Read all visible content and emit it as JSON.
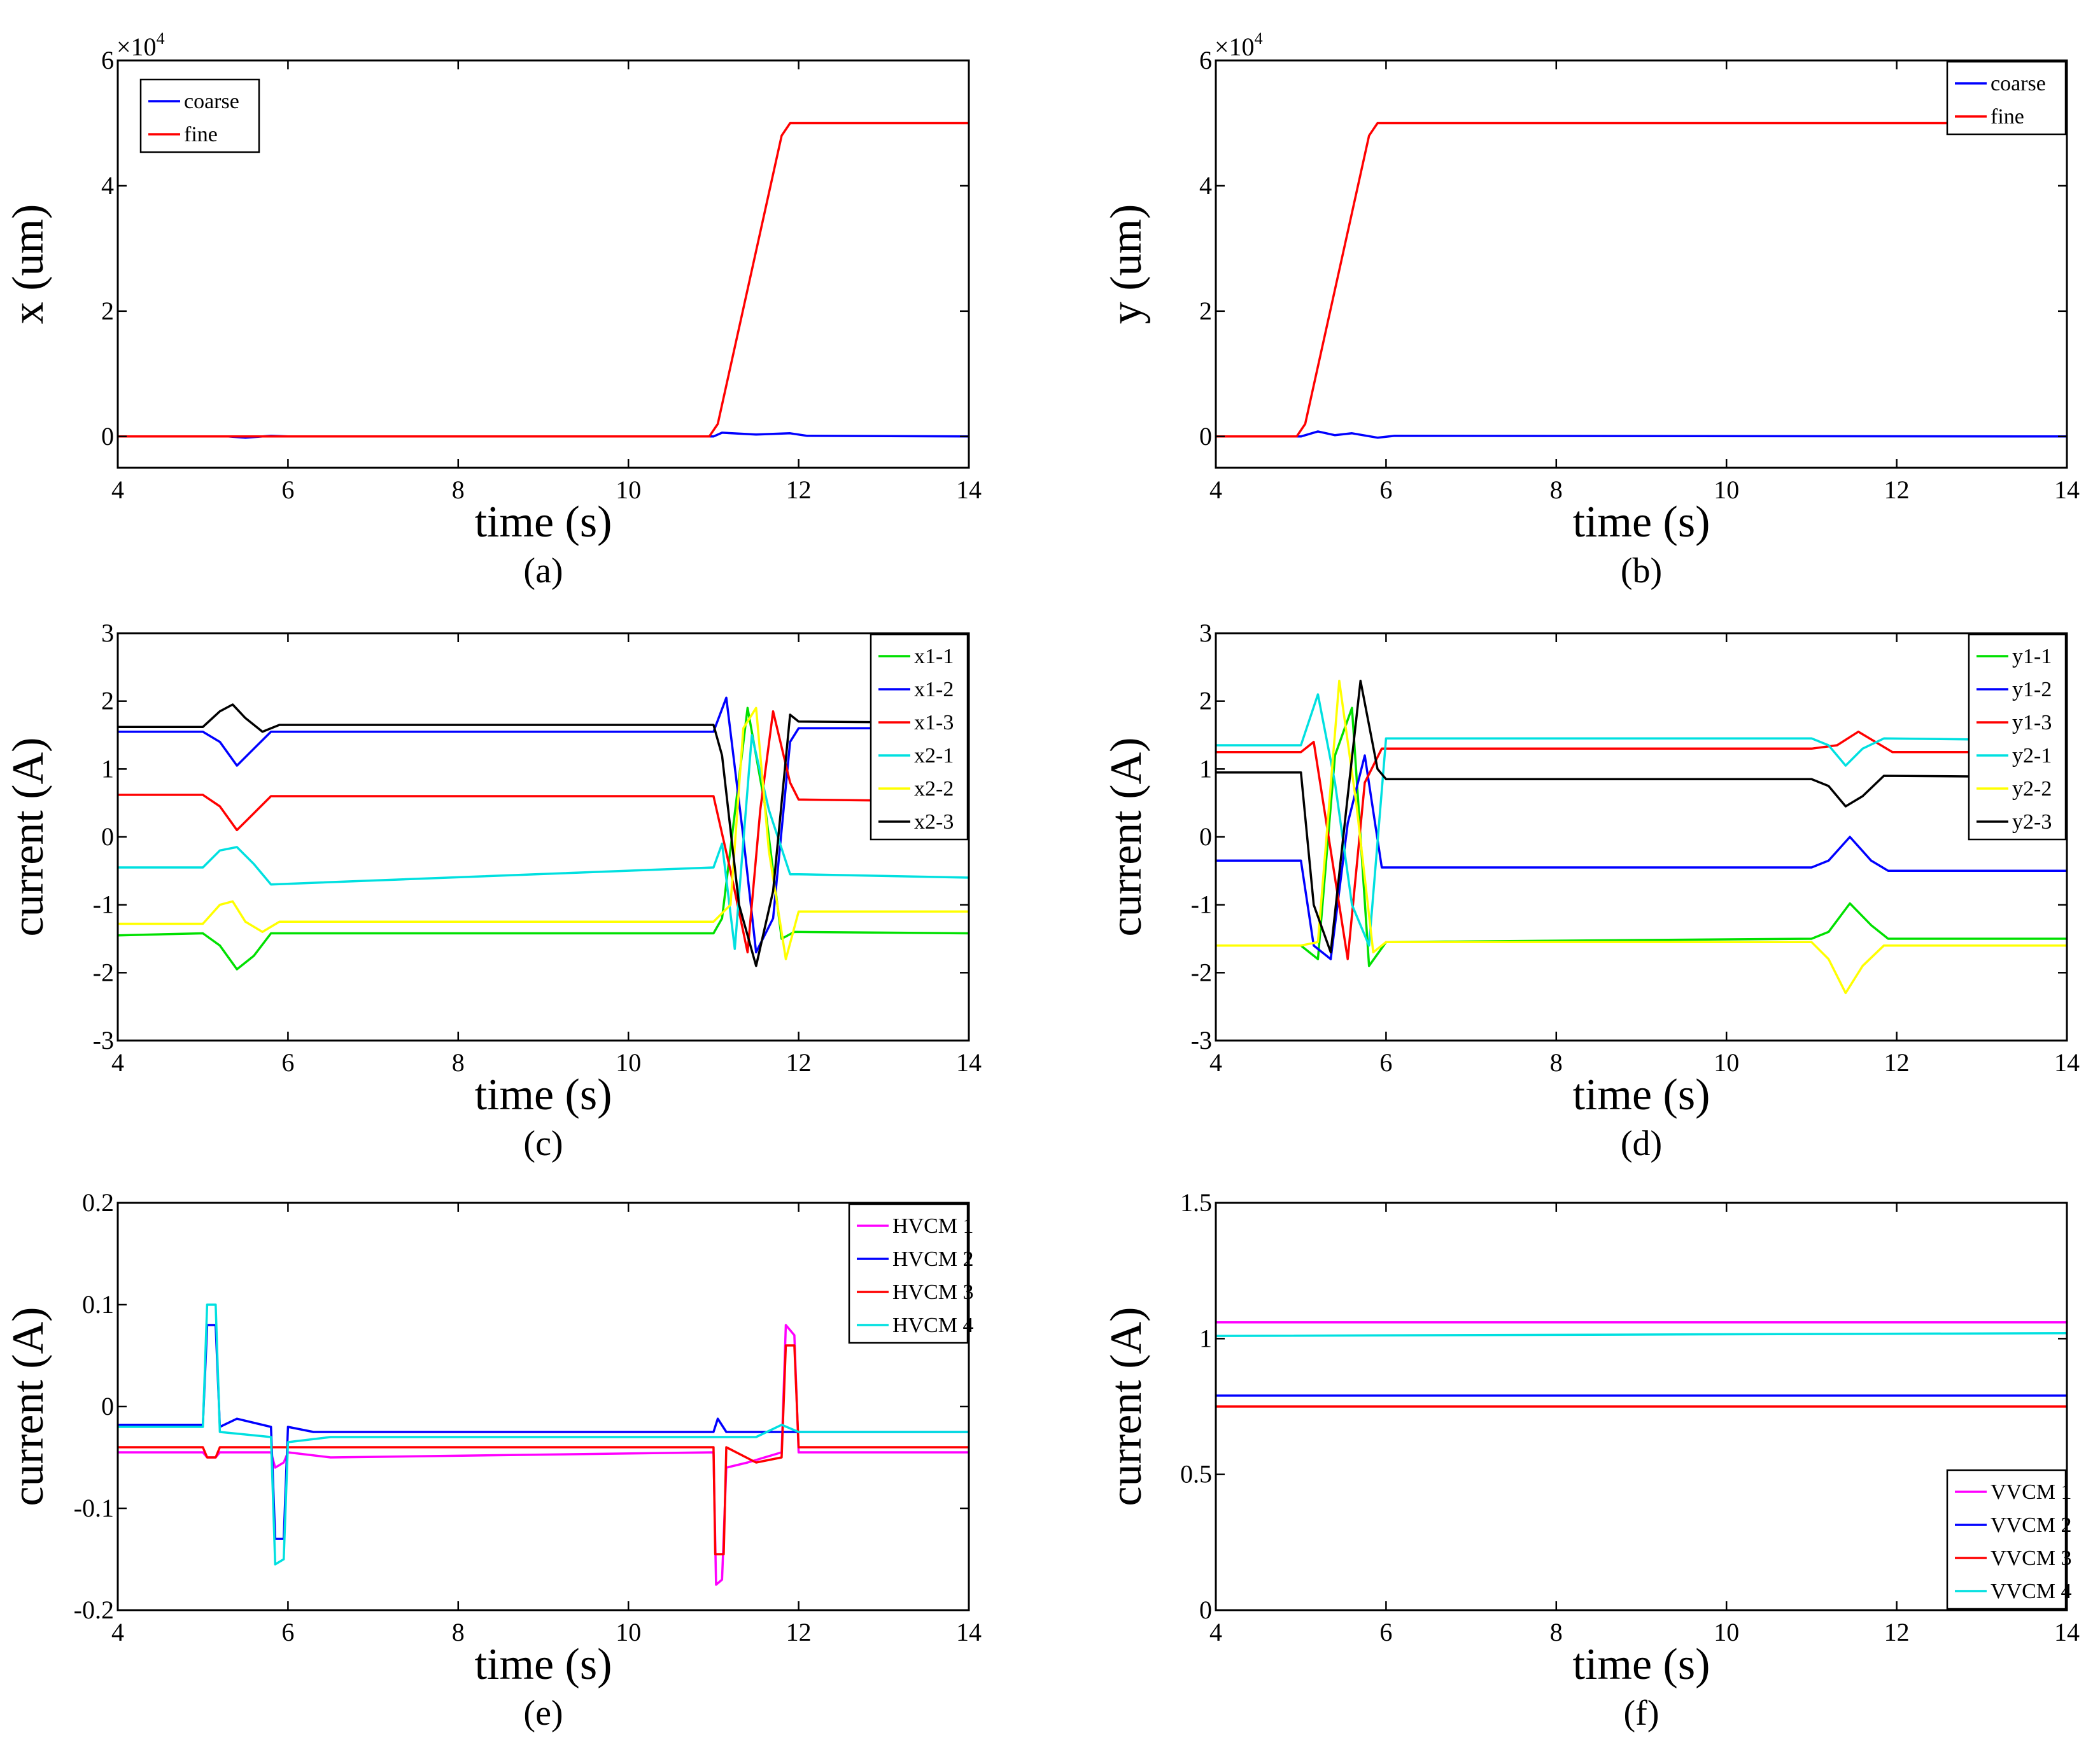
{
  "chart_data": [
    {
      "id": "a",
      "type": "line",
      "panel_label": "(a)",
      "xlabel": "time (s)",
      "ylabel": "x (um)",
      "xlim": [
        4,
        14
      ],
      "ylim": [
        -0.5,
        6
      ],
      "xticks": [
        4,
        6,
        8,
        10,
        12,
        14
      ],
      "yticks": [
        0,
        2,
        4,
        6
      ],
      "y_exponent": {
        "base": "×10",
        "power": "4"
      },
      "legend_position": "top-left",
      "series": [
        {
          "name": "coarse",
          "color": "#0000ff",
          "x": [
            4,
            5.3,
            5.5,
            5.8,
            6,
            11,
            11.1,
            11.5,
            11.9,
            12.1,
            14
          ],
          "y": [
            0,
            0,
            -0.02,
            0.01,
            0,
            0,
            0.06,
            0.03,
            0.05,
            0.01,
            0
          ]
        },
        {
          "name": "fine",
          "color": "#ff0000",
          "x": [
            4,
            10.95,
            11.05,
            11.8,
            11.9,
            14
          ],
          "y": [
            0,
            0,
            0.2,
            4.8,
            5,
            5
          ]
        }
      ]
    },
    {
      "id": "b",
      "type": "line",
      "panel_label": "(b)",
      "xlabel": "time (s)",
      "ylabel": "y (um)",
      "xlim": [
        4,
        14
      ],
      "ylim": [
        -0.5,
        6
      ],
      "xticks": [
        4,
        6,
        8,
        10,
        12,
        14
      ],
      "yticks": [
        0,
        2,
        4,
        6
      ],
      "y_exponent": {
        "base": "×10",
        "power": "4"
      },
      "legend_position": "top-right",
      "series": [
        {
          "name": "coarse",
          "color": "#0000ff",
          "x": [
            4,
            5,
            5.2,
            5.4,
            5.6,
            5.9,
            6.1,
            14
          ],
          "y": [
            0,
            0,
            0.08,
            0.02,
            0.05,
            -0.02,
            0.01,
            0
          ]
        },
        {
          "name": "fine",
          "color": "#ff0000",
          "x": [
            4,
            4.95,
            5.05,
            5.8,
            5.9,
            14
          ],
          "y": [
            0,
            0,
            0.2,
            4.8,
            5,
            5
          ]
        }
      ]
    },
    {
      "id": "c",
      "type": "line",
      "panel_label": "(c)",
      "xlabel": "time (s)",
      "ylabel": "current (A)",
      "xlim": [
        4,
        14
      ],
      "ylim": [
        -3,
        3
      ],
      "xticks": [
        4,
        6,
        8,
        10,
        12,
        14
      ],
      "yticks": [
        -3,
        -2,
        -1,
        0,
        1,
        2,
        3
      ],
      "legend_position": "top-right",
      "series": [
        {
          "name": "x1-1",
          "color": "#00e000",
          "x": [
            4,
            5,
            5.2,
            5.4,
            5.6,
            5.8,
            11,
            11.1,
            11.4,
            11.6,
            11.8,
            11.95,
            14
          ],
          "y": [
            -1.45,
            -1.42,
            -1.6,
            -1.95,
            -1.75,
            -1.42,
            -1.42,
            -1.2,
            1.9,
            0.5,
            -1.5,
            -1.4,
            -1.42
          ]
        },
        {
          "name": "x1-2",
          "color": "#0000ff",
          "x": [
            4,
            5,
            5.2,
            5.4,
            5.6,
            5.8,
            11,
            11.15,
            11.35,
            11.5,
            11.7,
            11.9,
            12,
            14
          ],
          "y": [
            1.55,
            1.55,
            1.4,
            1.05,
            1.3,
            1.55,
            1.55,
            2.05,
            0.0,
            -1.7,
            -1.2,
            1.4,
            1.6,
            1.6
          ]
        },
        {
          "name": "x1-3",
          "color": "#ff0000",
          "x": [
            4,
            5,
            5.2,
            5.4,
            5.6,
            5.8,
            11,
            11.2,
            11.4,
            11.55,
            11.7,
            11.9,
            12,
            14
          ],
          "y": [
            0.62,
            0.62,
            0.45,
            0.1,
            0.35,
            0.6,
            0.6,
            -0.5,
            -1.7,
            0.4,
            1.85,
            0.8,
            0.55,
            0.52
          ]
        },
        {
          "name": "x2-1",
          "color": "#00e0e0",
          "x": [
            4,
            5,
            5.2,
            5.4,
            5.6,
            5.8,
            11,
            11.1,
            11.25,
            11.45,
            11.65,
            11.9,
            12,
            14
          ],
          "y": [
            -0.45,
            -0.45,
            -0.2,
            -0.15,
            -0.4,
            -0.7,
            -0.45,
            -0.1,
            -1.65,
            1.5,
            0.4,
            -0.55,
            -0.55,
            -0.6
          ]
        },
        {
          "name": "x2-2",
          "color": "#ffff00",
          "x": [
            4,
            5,
            5.2,
            5.35,
            5.5,
            5.7,
            5.9,
            11,
            11.2,
            11.35,
            11.5,
            11.65,
            11.85,
            12,
            14
          ],
          "y": [
            -1.28,
            -1.28,
            -1.0,
            -0.95,
            -1.25,
            -1.4,
            -1.25,
            -1.25,
            -1.0,
            1.6,
            1.9,
            -0.2,
            -1.8,
            -1.1,
            -1.1
          ]
        },
        {
          "name": "x2-3",
          "color": "#000000",
          "x": [
            4,
            5,
            5.2,
            5.35,
            5.5,
            5.7,
            5.9,
            11,
            11.1,
            11.3,
            11.5,
            11.7,
            11.9,
            12,
            14
          ],
          "y": [
            1.62,
            1.62,
            1.85,
            1.95,
            1.75,
            1.55,
            1.65,
            1.65,
            1.2,
            -1.0,
            -1.9,
            -0.8,
            1.8,
            1.7,
            1.68
          ]
        }
      ]
    },
    {
      "id": "d",
      "type": "line",
      "panel_label": "(d)",
      "xlabel": "time (s)",
      "ylabel": "current (A)",
      "xlim": [
        4,
        14
      ],
      "ylim": [
        -3,
        3
      ],
      "xticks": [
        4,
        6,
        8,
        10,
        12,
        14
      ],
      "yticks": [
        -3,
        -2,
        -1,
        0,
        1,
        2,
        3
      ],
      "legend_position": "top-right",
      "series": [
        {
          "name": "y1-1",
          "color": "#00e000",
          "x": [
            4,
            5,
            5.2,
            5.4,
            5.6,
            5.8,
            6,
            11,
            11.2,
            11.45,
            11.7,
            11.9,
            14
          ],
          "y": [
            -1.6,
            -1.6,
            -1.8,
            1.2,
            1.9,
            -1.9,
            -1.55,
            -1.5,
            -1.4,
            -0.98,
            -1.3,
            -1.5,
            -1.5
          ]
        },
        {
          "name": "y1-2",
          "color": "#0000ff",
          "x": [
            4,
            5,
            5.15,
            5.35,
            5.55,
            5.75,
            5.95,
            11,
            11.2,
            11.45,
            11.7,
            11.9,
            14
          ],
          "y": [
            -0.35,
            -0.35,
            -1.6,
            -1.8,
            0.2,
            1.2,
            -0.45,
            -0.45,
            -0.35,
            0.0,
            -0.35,
            -0.5,
            -0.5
          ]
        },
        {
          "name": "y1-3",
          "color": "#ff0000",
          "x": [
            4,
            5,
            5.15,
            5.35,
            5.55,
            5.75,
            5.95,
            11,
            11.3,
            11.55,
            11.75,
            11.95,
            14
          ],
          "y": [
            1.25,
            1.25,
            1.4,
            -0.2,
            -1.8,
            0.8,
            1.3,
            1.3,
            1.35,
            1.55,
            1.4,
            1.25,
            1.25
          ]
        },
        {
          "name": "y2-1",
          "color": "#00e0e0",
          "x": [
            4,
            5,
            5.2,
            5.4,
            5.6,
            5.8,
            6,
            11,
            11.2,
            11.4,
            11.6,
            11.85,
            14
          ],
          "y": [
            1.35,
            1.35,
            2.1,
            0.8,
            -1.0,
            -1.6,
            1.45,
            1.45,
            1.35,
            1.05,
            1.3,
            1.45,
            1.42
          ]
        },
        {
          "name": "y2-2",
          "color": "#ffff00",
          "x": [
            4,
            5,
            5.2,
            5.45,
            5.65,
            5.85,
            6,
            11,
            11.2,
            11.4,
            11.6,
            11.85,
            14
          ],
          "y": [
            -1.6,
            -1.6,
            -1.55,
            2.3,
            0.5,
            -1.7,
            -1.55,
            -1.55,
            -1.8,
            -2.3,
            -1.9,
            -1.6,
            -1.6
          ]
        },
        {
          "name": "y2-3",
          "color": "#000000",
          "x": [
            4,
            5,
            5.15,
            5.35,
            5.55,
            5.7,
            5.9,
            6,
            11,
            11.2,
            11.4,
            11.6,
            11.85,
            14
          ],
          "y": [
            0.95,
            0.95,
            -1.0,
            -1.7,
            0.6,
            2.3,
            1.0,
            0.85,
            0.85,
            0.75,
            0.45,
            0.6,
            0.9,
            0.88
          ]
        }
      ]
    },
    {
      "id": "e",
      "type": "line",
      "panel_label": "(e)",
      "xlabel": "time (s)",
      "ylabel": "current (A)",
      "xlim": [
        4,
        14
      ],
      "ylim": [
        -0.2,
        0.2
      ],
      "xticks": [
        4,
        6,
        8,
        10,
        12,
        14
      ],
      "yticks": [
        -0.2,
        -0.1,
        0,
        0.1,
        0.2
      ],
      "ytick_labels": [
        "-0.2",
        "-0.1",
        "0",
        "0.1",
        "0.2"
      ],
      "legend_position": "top-right",
      "series": [
        {
          "name": "HVCM 1",
          "color": "#ff00ff",
          "x": [
            4,
            5,
            5.05,
            5.15,
            5.2,
            5.8,
            5.85,
            5.95,
            6,
            6.5,
            11,
            11.03,
            11.1,
            11.15,
            11.4,
            11.8,
            11.85,
            11.95,
            12,
            14
          ],
          "y": [
            -0.045,
            -0.045,
            -0.05,
            -0.05,
            -0.045,
            -0.045,
            -0.06,
            -0.055,
            -0.045,
            -0.05,
            -0.045,
            -0.175,
            -0.17,
            -0.06,
            -0.055,
            -0.045,
            0.08,
            0.07,
            -0.045,
            -0.045
          ]
        },
        {
          "name": "HVCM 2",
          "color": "#0000ff",
          "x": [
            4,
            5,
            5.05,
            5.15,
            5.2,
            5.4,
            5.8,
            5.85,
            5.95,
            6,
            6.3,
            11,
            11.05,
            11.15,
            11.5,
            14
          ],
          "y": [
            -0.018,
            -0.018,
            0.08,
            0.08,
            -0.02,
            -0.012,
            -0.02,
            -0.13,
            -0.13,
            -0.02,
            -0.025,
            -0.025,
            -0.012,
            -0.025,
            -0.025,
            -0.025
          ]
        },
        {
          "name": "HVCM 3",
          "color": "#ff0000",
          "x": [
            4,
            5,
            5.05,
            5.15,
            5.2,
            6,
            11,
            11.02,
            11.12,
            11.15,
            11.5,
            11.8,
            11.85,
            11.95,
            12,
            14
          ],
          "y": [
            -0.04,
            -0.04,
            -0.05,
            -0.05,
            -0.04,
            -0.04,
            -0.04,
            -0.145,
            -0.145,
            -0.04,
            -0.055,
            -0.05,
            0.06,
            0.06,
            -0.04,
            -0.04
          ]
        },
        {
          "name": "HVCM 4",
          "color": "#00e0e0",
          "x": [
            4,
            5,
            5.05,
            5.15,
            5.2,
            5.8,
            5.85,
            5.95,
            6,
            6.5,
            11.5,
            11.8,
            12,
            14
          ],
          "y": [
            -0.02,
            -0.02,
            0.1,
            0.1,
            -0.025,
            -0.03,
            -0.155,
            -0.15,
            -0.035,
            -0.03,
            -0.03,
            -0.018,
            -0.025,
            -0.025
          ]
        }
      ]
    },
    {
      "id": "f",
      "type": "line",
      "panel_label": "(f)",
      "xlabel": "time (s)",
      "ylabel": "current (A)",
      "xlim": [
        4,
        14
      ],
      "ylim": [
        0,
        1.5
      ],
      "xticks": [
        4,
        6,
        8,
        10,
        12,
        14
      ],
      "yticks": [
        0,
        0.5,
        1,
        1.5
      ],
      "ytick_labels": [
        "0",
        "0.5",
        "1",
        "1.5"
      ],
      "legend_position": "bottom-right",
      "series": [
        {
          "name": "VVCM 1",
          "color": "#ff00ff",
          "x": [
            4,
            14
          ],
          "y": [
            1.06,
            1.06
          ]
        },
        {
          "name": "VVCM 2",
          "color": "#0000ff",
          "x": [
            4,
            14
          ],
          "y": [
            0.79,
            0.79
          ]
        },
        {
          "name": "VVCM 3",
          "color": "#ff0000",
          "x": [
            4,
            14
          ],
          "y": [
            0.75,
            0.75
          ]
        },
        {
          "name": "VVCM 4",
          "color": "#00e0e0",
          "x": [
            4,
            14
          ],
          "y": [
            1.01,
            1.02
          ]
        }
      ]
    }
  ]
}
